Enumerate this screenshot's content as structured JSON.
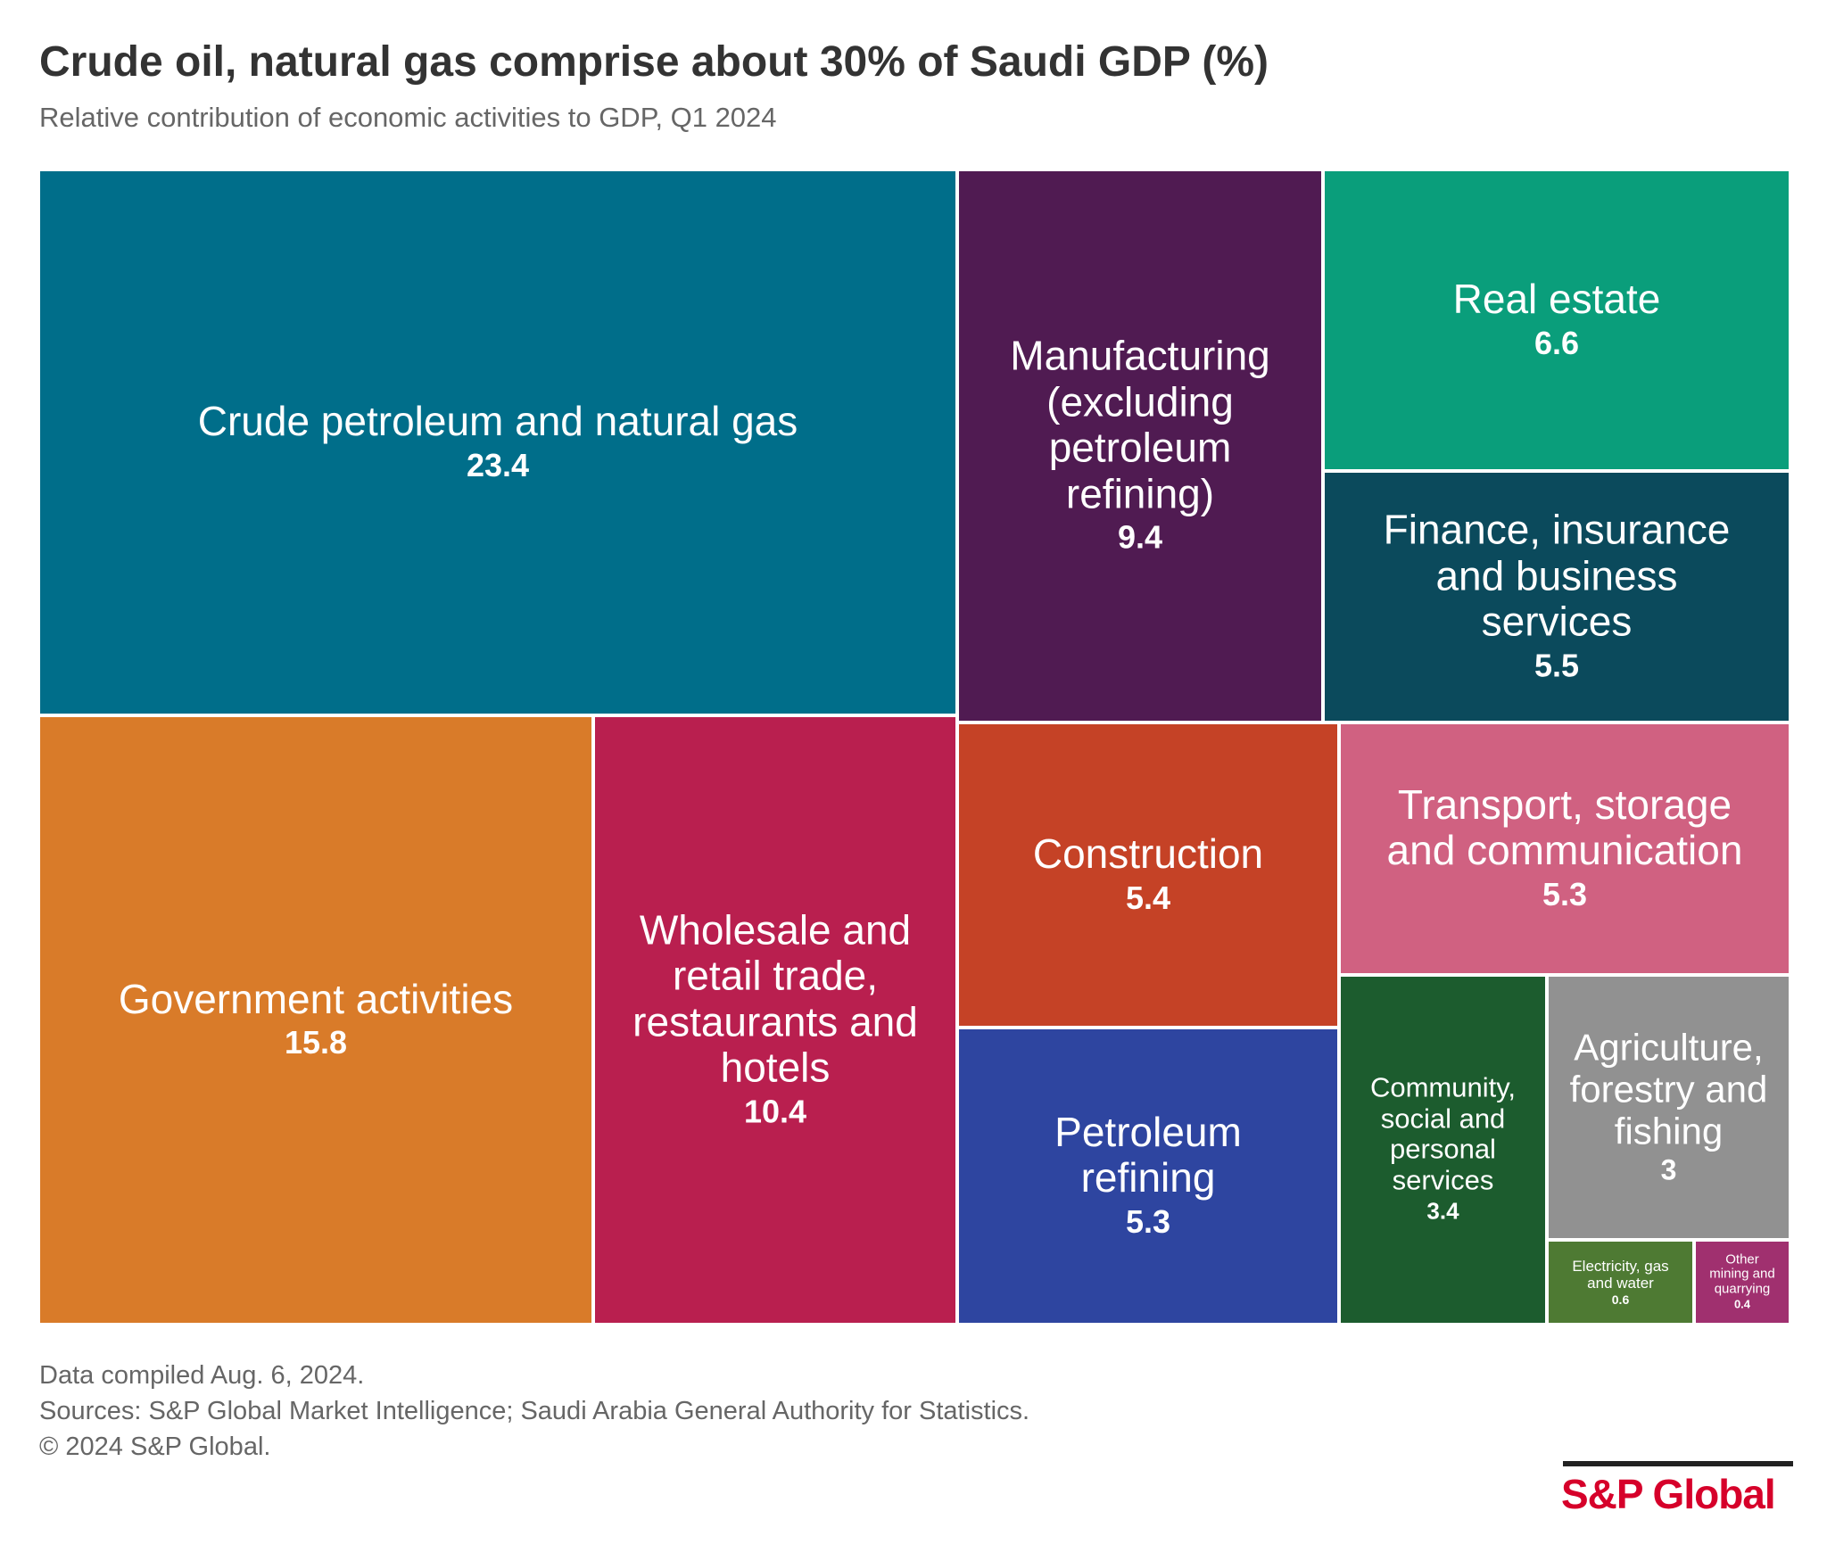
{
  "title": "Crude oil, natural gas comprise about 30% of Saudi GDP (%)",
  "subtitle": "Relative contribution of economic activities to GDP, Q1 2024",
  "chart_data": {
    "type": "treemap",
    "title": "Crude oil, natural gas comprise about 30% of Saudi GDP (%)",
    "subtitle": "Relative contribution of economic activities to GDP, Q1 2024",
    "items": [
      {
        "name": "Crude petroleum and natural gas",
        "value": 23.4,
        "color": "#006e8a"
      },
      {
        "name": "Government activities",
        "value": 15.8,
        "color": "#d97b29"
      },
      {
        "name": "Wholesale and retail trade, restaurants and hotels",
        "value": 10.4,
        "color": "#b91f4f"
      },
      {
        "name": "Manufacturing (excluding petroleum refining)",
        "value": 9.4,
        "color": "#501b52"
      },
      {
        "name": "Real estate",
        "value": 6.6,
        "color": "#0a9e7b"
      },
      {
        "name": "Finance, insurance and business services",
        "value": 5.5,
        "color": "#0b4a5c"
      },
      {
        "name": "Construction",
        "value": 5.4,
        "color": "#c54226"
      },
      {
        "name": "Petroleum refining",
        "value": 5.3,
        "color": "#2e45a0"
      },
      {
        "name": "Transport, storage and communication",
        "value": 5.3,
        "color": "#d06181"
      },
      {
        "name": "Community, social and personal services",
        "value": 3.4,
        "color": "#1c5c2e"
      },
      {
        "name": "Agriculture, forestry and fishing",
        "value": 3,
        "color": "#919191"
      },
      {
        "name": "Electricity, gas and water",
        "value": 0.6,
        "color": "#4e7a33"
      },
      {
        "name": "Other mining and quarrying",
        "value": 0.4,
        "color": "#a0306f"
      }
    ]
  },
  "footer": {
    "compiled": "Data compiled Aug. 6, 2024.",
    "sources": "Sources: S&P Global Market Intelligence; Saudi Arabia General Authority for Statistics.",
    "copyright": "© 2024 S&P Global."
  },
  "logo": "S&P Global"
}
